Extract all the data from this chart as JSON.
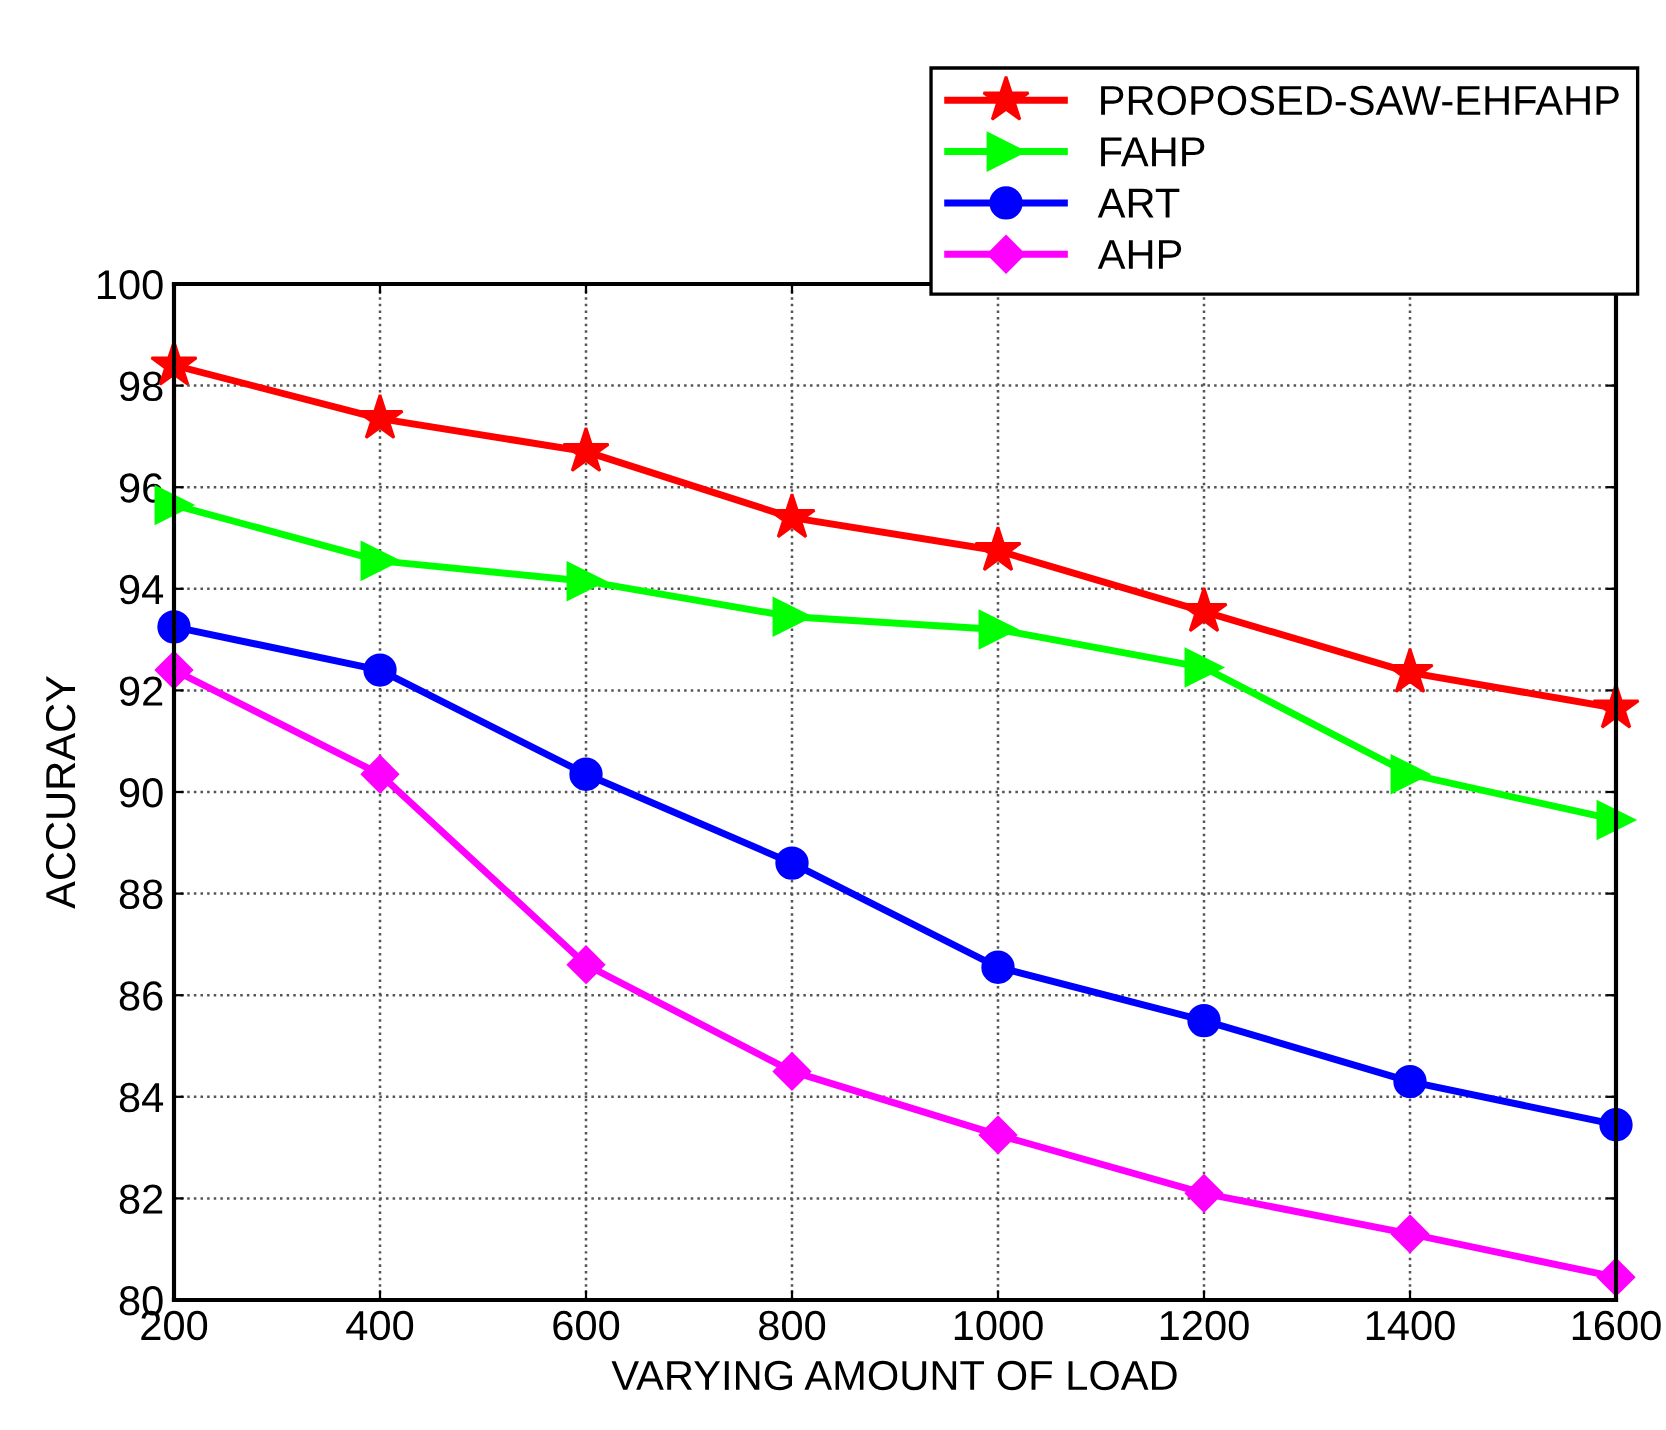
{
  "chart_data": {
    "type": "line",
    "xlabel": "VARYING AMOUNT OF LOAD",
    "ylabel": "ACCURACY",
    "x": [
      200,
      400,
      600,
      800,
      1000,
      1200,
      1400,
      1600
    ],
    "series": [
      {
        "name": "PROPOSED-SAW-EHFAHP",
        "color": "#ff0000",
        "marker": "star",
        "values": [
          98.4,
          97.35,
          96.7,
          95.4,
          94.75,
          93.55,
          92.35,
          91.65
        ]
      },
      {
        "name": "FAHP",
        "color": "#00ff00",
        "marker": "triangle",
        "values": [
          95.65,
          94.55,
          94.15,
          93.45,
          93.2,
          92.45,
          90.35,
          89.45
        ]
      },
      {
        "name": "ART",
        "color": "#0000ff",
        "marker": "circle",
        "values": [
          93.25,
          92.4,
          90.35,
          88.6,
          86.55,
          85.5,
          84.3,
          83.45
        ]
      },
      {
        "name": "AHP",
        "color": "#ff00ff",
        "marker": "diamond",
        "values": [
          92.4,
          90.35,
          86.6,
          84.5,
          83.25,
          82.1,
          81.3,
          80.45
        ]
      }
    ],
    "xlim": [
      200,
      1600
    ],
    "ylim": [
      80,
      100
    ],
    "xticks": [
      200,
      400,
      600,
      800,
      1000,
      1200,
      1400,
      1600
    ],
    "yticks": [
      80,
      82,
      84,
      86,
      88,
      90,
      92,
      94,
      96,
      98,
      100
    ],
    "grid": true,
    "legend": "top right",
    "line_style": "solid"
  }
}
